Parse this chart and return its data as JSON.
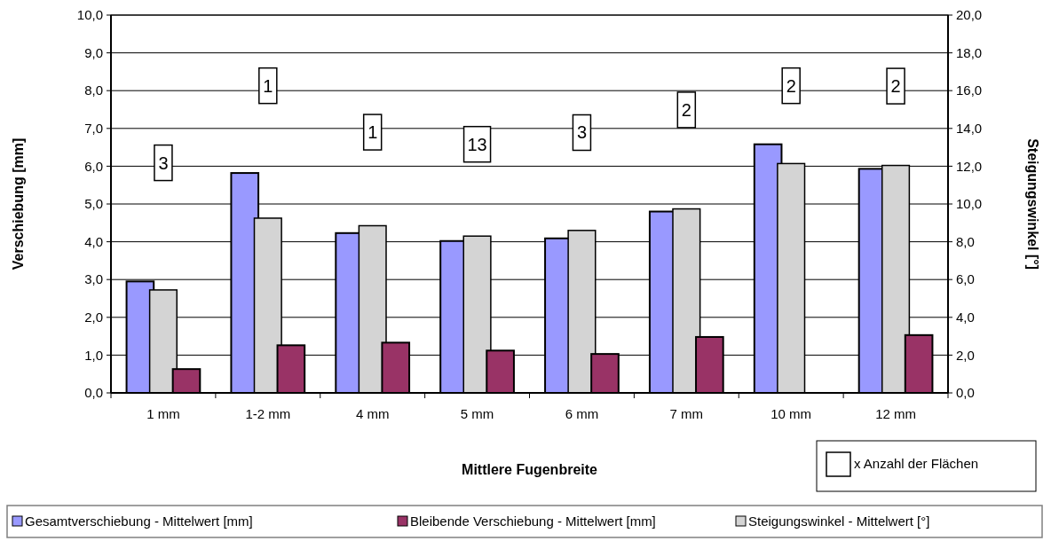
{
  "chart_data": {
    "type": "bar",
    "xlabel": "Mittlere Fugenbreite",
    "ylabel": "Verschiebung [mm]",
    "y2label": "Steigungswinkel [°]",
    "categories": [
      "1 mm",
      "1-2 mm",
      "4 mm",
      "5 mm",
      "6 mm",
      "7 mm",
      "10 mm",
      "12 mm"
    ],
    "series": [
      {
        "name": "Gesamtverschiebung - Mittelwert [mm]",
        "color": "#9999ff",
        "values": [
          2.95,
          5.82,
          4.23,
          4.02,
          4.09,
          4.8,
          6.58,
          5.93
        ]
      },
      {
        "name": "Steigungswinkel - Mittelwert [°]",
        "color": "#d4d4d4",
        "axis": "y2",
        "values": [
          5.45,
          9.25,
          8.85,
          8.3,
          8.6,
          9.74,
          12.14,
          12.04
        ]
      },
      {
        "name": "Bleibende Verschiebung - Mittelwert [mm]",
        "color": "#993366",
        "values": [
          0.63,
          1.26,
          1.33,
          1.12,
          1.03,
          1.48,
          null,
          1.53
        ]
      }
    ],
    "ylim": [
      0,
      10
    ],
    "yticks": [
      {
        "value": 0,
        "label": "0,0"
      },
      {
        "value": 1,
        "label": "1,0"
      },
      {
        "value": 2,
        "label": "2,0"
      },
      {
        "value": 3,
        "label": "3,0"
      },
      {
        "value": 4,
        "label": "4,0"
      },
      {
        "value": 5,
        "label": "5,0"
      },
      {
        "value": 6,
        "label": "6,0"
      },
      {
        "value": 7,
        "label": "7,0"
      },
      {
        "value": 8,
        "label": "8,0"
      },
      {
        "value": 9,
        "label": "9,0"
      },
      {
        "value": 10,
        "label": "10,0"
      }
    ],
    "y2lim": [
      0,
      20
    ],
    "y2ticks": [
      {
        "value": 0,
        "label": "0,0"
      },
      {
        "value": 2,
        "label": "2,0"
      },
      {
        "value": 4,
        "label": "4,0"
      },
      {
        "value": 6,
        "label": "6,0"
      },
      {
        "value": 8,
        "label": "8,0"
      },
      {
        "value": 10,
        "label": "10,0"
      },
      {
        "value": 12,
        "label": "12,0"
      },
      {
        "value": 14,
        "label": "14,0"
      },
      {
        "value": 16,
        "label": "16,0"
      },
      {
        "value": 18,
        "label": "18,0"
      },
      {
        "value": 20,
        "label": "20,0"
      }
    ],
    "grid": "y",
    "legend": "bottom",
    "annotations": [
      {
        "text": "3",
        "y": 6.09
      },
      {
        "text": "1",
        "y": 8.13
      },
      {
        "text": "1",
        "y": 6.9
      },
      {
        "text": "13",
        "y": 6.58
      },
      {
        "text": "3",
        "y": 6.89
      },
      {
        "text": "2",
        "y": 7.49
      },
      {
        "text": "2",
        "y": 8.13
      },
      {
        "text": "2",
        "y": 8.12
      },
      "x Anzahl der Flächen"
    ]
  }
}
